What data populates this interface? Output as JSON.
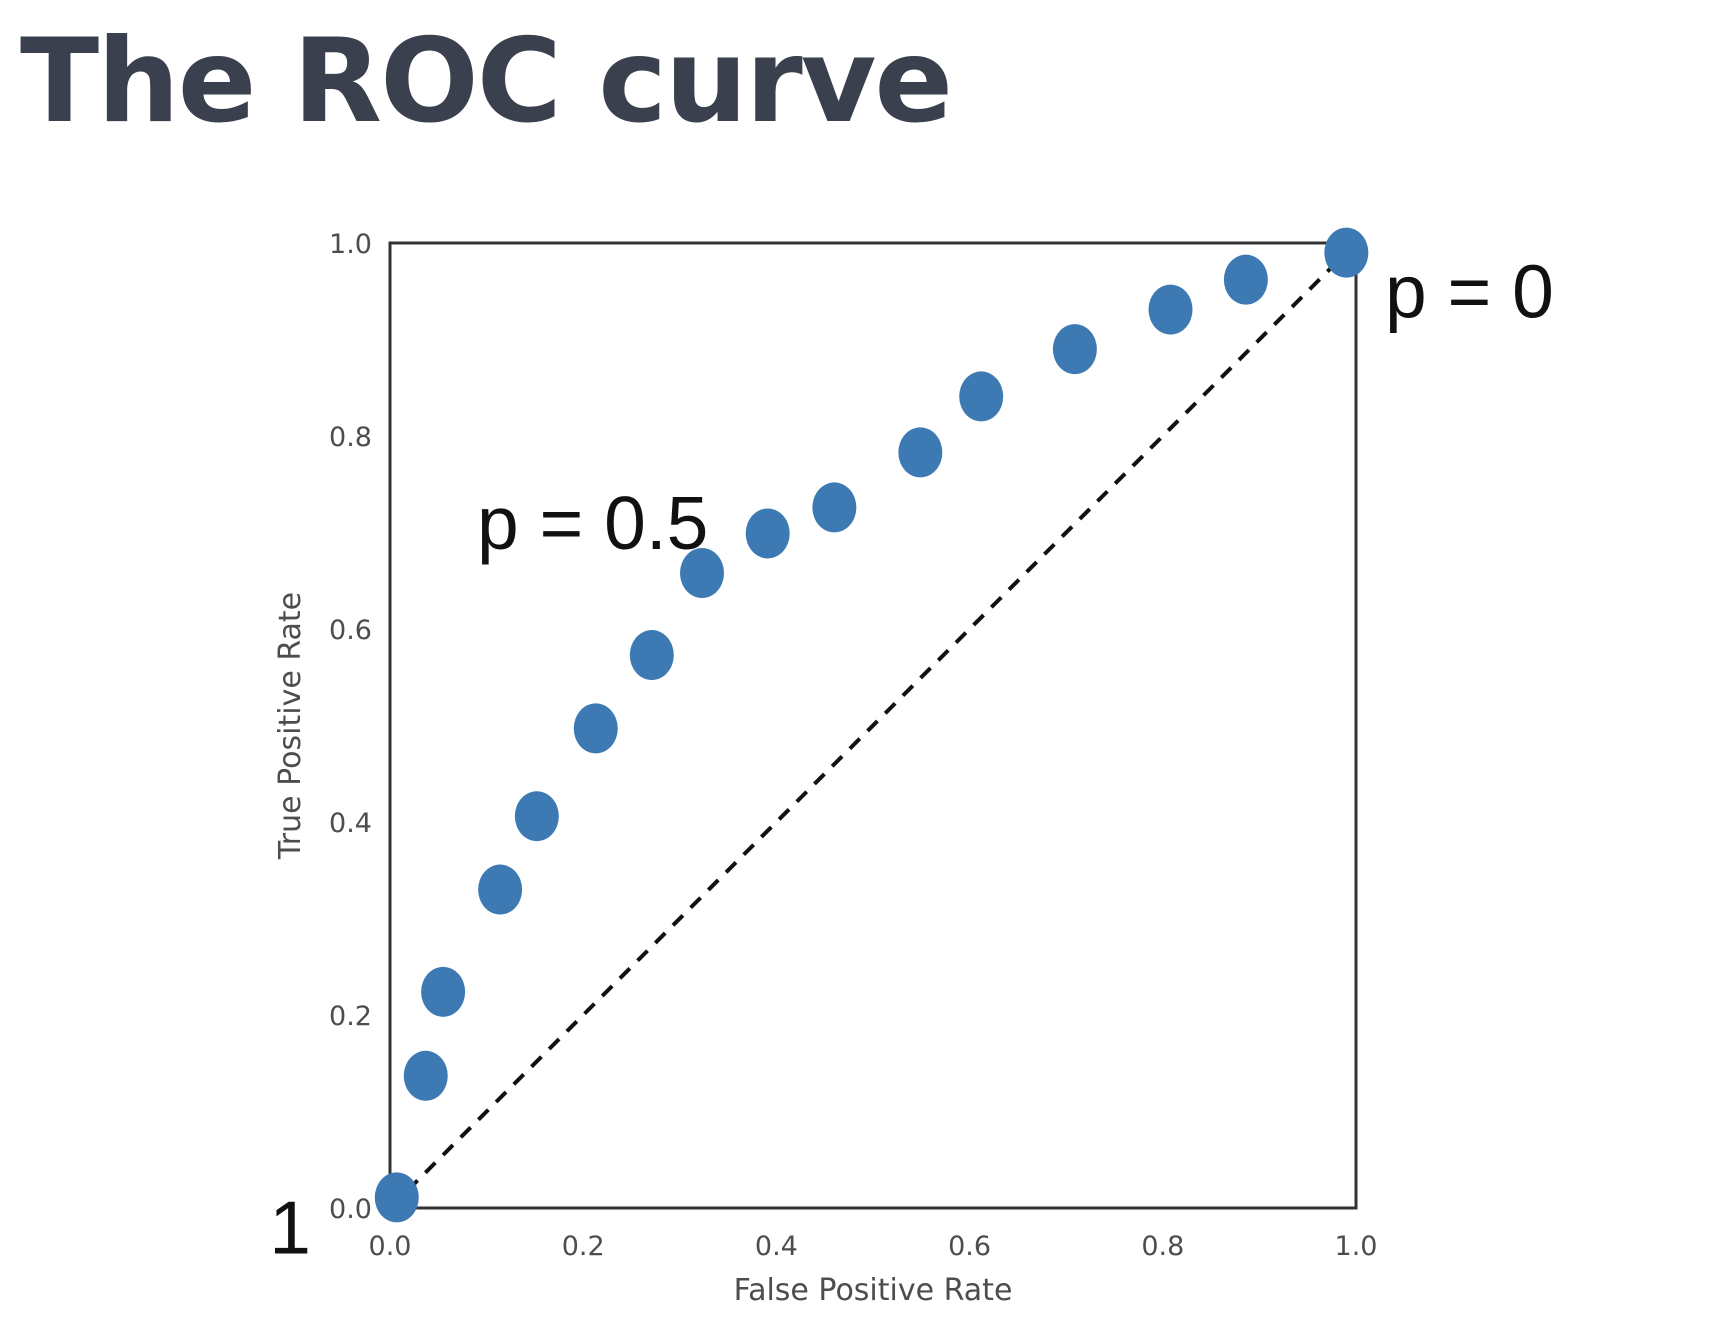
{
  "page": {
    "title": "The ROC curve"
  },
  "chart_data": {
    "type": "scatter",
    "xlabel": "False Positive Rate",
    "ylabel": "True Positive Rate",
    "xlim": [
      0,
      1
    ],
    "ylim": [
      0,
      1
    ],
    "x_ticks": [
      "0.0",
      "0.2",
      "0.4",
      "0.6",
      "0.8",
      "1.0"
    ],
    "y_ticks": [
      "0.0",
      "0.2",
      "0.4",
      "0.6",
      "0.8",
      "1.0"
    ],
    "grid": false,
    "marker_color": "#3d7ab3",
    "diagonal": {
      "style": "dashed",
      "color": "#111111",
      "from": [
        0,
        0
      ],
      "to": [
        1,
        1
      ]
    },
    "points": [
      {
        "x": 0.007,
        "y": 0.011
      },
      {
        "x": 0.037,
        "y": 0.137
      },
      {
        "x": 0.055,
        "y": 0.224
      },
      {
        "x": 0.114,
        "y": 0.33
      },
      {
        "x": 0.152,
        "y": 0.406
      },
      {
        "x": 0.213,
        "y": 0.497
      },
      {
        "x": 0.271,
        "y": 0.573
      },
      {
        "x": 0.323,
        "y": 0.658
      },
      {
        "x": 0.391,
        "y": 0.699
      },
      {
        "x": 0.46,
        "y": 0.726
      },
      {
        "x": 0.549,
        "y": 0.783
      },
      {
        "x": 0.612,
        "y": 0.841
      },
      {
        "x": 0.709,
        "y": 0.89
      },
      {
        "x": 0.808,
        "y": 0.931
      },
      {
        "x": 0.886,
        "y": 0.962
      },
      {
        "x": 0.99,
        "y": 0.99
      }
    ],
    "annotations": [
      {
        "text": "p = 0",
        "x": 1.03,
        "y": 0.95
      },
      {
        "text": "p = 0.5",
        "x": 0.09,
        "y": 0.71
      },
      {
        "text": "1",
        "x": -0.125,
        "y": -0.02
      }
    ]
  }
}
